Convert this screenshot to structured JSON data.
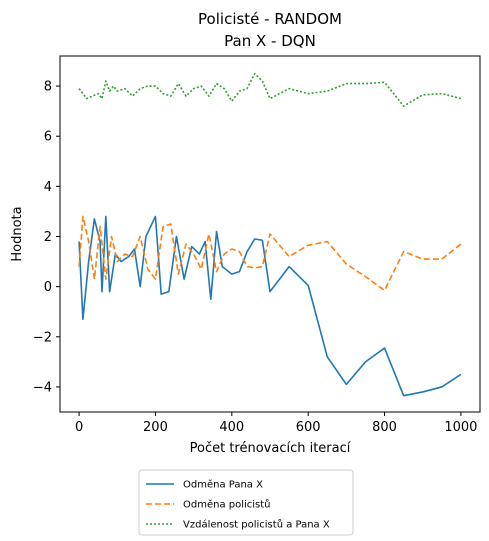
{
  "chart_data": {
    "type": "line",
    "title_lines": [
      "Policisté - RANDOM",
      "Pan X - DQN"
    ],
    "xlabel": "Počet trénovacích iterací",
    "ylabel": "Hodnota",
    "xlim": [
      -50,
      1050
    ],
    "ylim": [
      -5,
      9.2
    ],
    "xticks": [
      0,
      200,
      400,
      600,
      800,
      1000
    ],
    "yticks": [
      -4,
      -2,
      0,
      2,
      4,
      6,
      8
    ],
    "grid": false,
    "legend_position": "below-chart",
    "series": [
      {
        "name": "Odměna Pana X",
        "color": "#1f77b4",
        "dash": "solid",
        "points": [
          [
            0,
            1.8
          ],
          [
            10,
            -1.3
          ],
          [
            25,
            1.0
          ],
          [
            40,
            2.7
          ],
          [
            55,
            1.8
          ],
          [
            60,
            -0.2
          ],
          [
            70,
            2.8
          ],
          [
            80,
            -0.2
          ],
          [
            95,
            1.3
          ],
          [
            110,
            1.0
          ],
          [
            130,
            1.2
          ],
          [
            145,
            1.5
          ],
          [
            160,
            0.0
          ],
          [
            175,
            2.0
          ],
          [
            200,
            2.8
          ],
          [
            215,
            -0.3
          ],
          [
            235,
            -0.2
          ],
          [
            255,
            2.0
          ],
          [
            275,
            0.3
          ],
          [
            295,
            1.6
          ],
          [
            315,
            1.3
          ],
          [
            330,
            1.8
          ],
          [
            345,
            -0.5
          ],
          [
            360,
            2.2
          ],
          [
            375,
            0.8
          ],
          [
            400,
            0.5
          ],
          [
            420,
            0.6
          ],
          [
            440,
            1.4
          ],
          [
            460,
            1.9
          ],
          [
            480,
            1.85
          ],
          [
            500,
            -0.2
          ],
          [
            550,
            0.8
          ],
          [
            600,
            0.05
          ],
          [
            650,
            -2.8
          ],
          [
            700,
            -3.9
          ],
          [
            750,
            -3.0
          ],
          [
            800,
            -2.45
          ],
          [
            850,
            -4.35
          ],
          [
            900,
            -4.2
          ],
          [
            950,
            -4.0
          ],
          [
            1000,
            -3.5
          ]
        ]
      },
      {
        "name": "Odměna policistů",
        "color": "#ff7f0e",
        "dash": "dashed",
        "points": [
          [
            0,
            0.8
          ],
          [
            10,
            2.8
          ],
          [
            25,
            1.8
          ],
          [
            40,
            0.3
          ],
          [
            55,
            2.4
          ],
          [
            70,
            0.3
          ],
          [
            85,
            2.0
          ],
          [
            100,
            1.0
          ],
          [
            120,
            1.3
          ],
          [
            140,
            1.2
          ],
          [
            160,
            2.0
          ],
          [
            180,
            0.7
          ],
          [
            200,
            0.3
          ],
          [
            220,
            2.4
          ],
          [
            240,
            2.5
          ],
          [
            260,
            0.5
          ],
          [
            280,
            1.7
          ],
          [
            300,
            1.3
          ],
          [
            320,
            0.7
          ],
          [
            340,
            2.1
          ],
          [
            360,
            0.6
          ],
          [
            380,
            1.3
          ],
          [
            400,
            1.5
          ],
          [
            420,
            1.4
          ],
          [
            440,
            0.8
          ],
          [
            460,
            0.75
          ],
          [
            480,
            0.8
          ],
          [
            500,
            2.1
          ],
          [
            550,
            1.2
          ],
          [
            600,
            1.65
          ],
          [
            650,
            1.8
          ],
          [
            700,
            0.9
          ],
          [
            750,
            0.4
          ],
          [
            800,
            -0.15
          ],
          [
            850,
            1.4
          ],
          [
            900,
            1.1
          ],
          [
            950,
            1.1
          ],
          [
            1000,
            1.7
          ]
        ]
      },
      {
        "name": "Vzdálenost policistů a Pana X",
        "color": "#2ca02c",
        "dash": "dotted",
        "points": [
          [
            0,
            7.9
          ],
          [
            20,
            7.5
          ],
          [
            35,
            7.6
          ],
          [
            50,
            7.7
          ],
          [
            60,
            7.5
          ],
          [
            70,
            8.2
          ],
          [
            80,
            7.8
          ],
          [
            90,
            8.0
          ],
          [
            100,
            7.8
          ],
          [
            120,
            7.9
          ],
          [
            140,
            7.6
          ],
          [
            160,
            7.9
          ],
          [
            180,
            8.0
          ],
          [
            200,
            8.0
          ],
          [
            220,
            7.7
          ],
          [
            240,
            7.6
          ],
          [
            260,
            8.1
          ],
          [
            280,
            7.6
          ],
          [
            300,
            7.9
          ],
          [
            320,
            8.0
          ],
          [
            340,
            7.6
          ],
          [
            360,
            8.1
          ],
          [
            380,
            7.9
          ],
          [
            400,
            7.4
          ],
          [
            420,
            7.8
          ],
          [
            440,
            7.9
          ],
          [
            460,
            8.5
          ],
          [
            480,
            8.2
          ],
          [
            500,
            7.5
          ],
          [
            550,
            7.9
          ],
          [
            600,
            7.7
          ],
          [
            650,
            7.8
          ],
          [
            700,
            8.1
          ],
          [
            750,
            8.1
          ],
          [
            800,
            8.15
          ],
          [
            850,
            7.2
          ],
          [
            900,
            7.65
          ],
          [
            950,
            7.7
          ],
          [
            1000,
            7.5
          ]
        ]
      }
    ]
  }
}
